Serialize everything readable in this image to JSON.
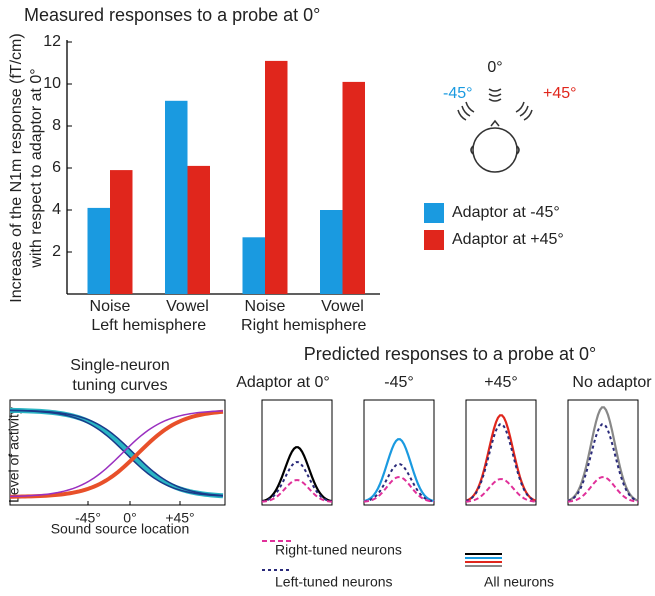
{
  "chart_data": {
    "type": "bar",
    "title": "Measured responses to a probe at 0°",
    "ylabel": [
      "Increase of the N1m response (fT/cm)",
      "with respect to adaptor at 0°"
    ],
    "categories": [
      "Noise",
      "Vowel",
      "Noise",
      "Vowel"
    ],
    "groups": [
      "Left hemisphere",
      "Right hemisphere"
    ],
    "series": [
      {
        "name": "Adaptor at -45°",
        "color": "#1a9ae0",
        "values": [
          4.1,
          9.2,
          2.7,
          4.0
        ]
      },
      {
        "name": "Adaptor at +45°",
        "color": "#e0261c",
        "values": [
          5.9,
          6.1,
          11.1,
          10.1
        ]
      }
    ],
    "ylim": [
      0,
      12
    ],
    "yticks": [
      2,
      4,
      6,
      8,
      10,
      12
    ]
  },
  "head_diagram": {
    "labels": [
      "-45°",
      "0°",
      "+45°"
    ]
  },
  "tuning_panel": {
    "title": [
      "Single-neuron",
      "tuning curves"
    ],
    "ylabel": "Level of activity",
    "xlabel": "Sound source location",
    "xticks": [
      "-45°",
      "0°",
      "+45°"
    ]
  },
  "prediction_panels": {
    "title": "Predicted responses to a probe at 0°",
    "panel_titles": [
      "Adaptor at 0°",
      "-45°",
      "+45°",
      "No adaptor"
    ],
    "legend": [
      "Right-tuned neurons",
      "Left-tuned neurons",
      "All neurons"
    ]
  }
}
